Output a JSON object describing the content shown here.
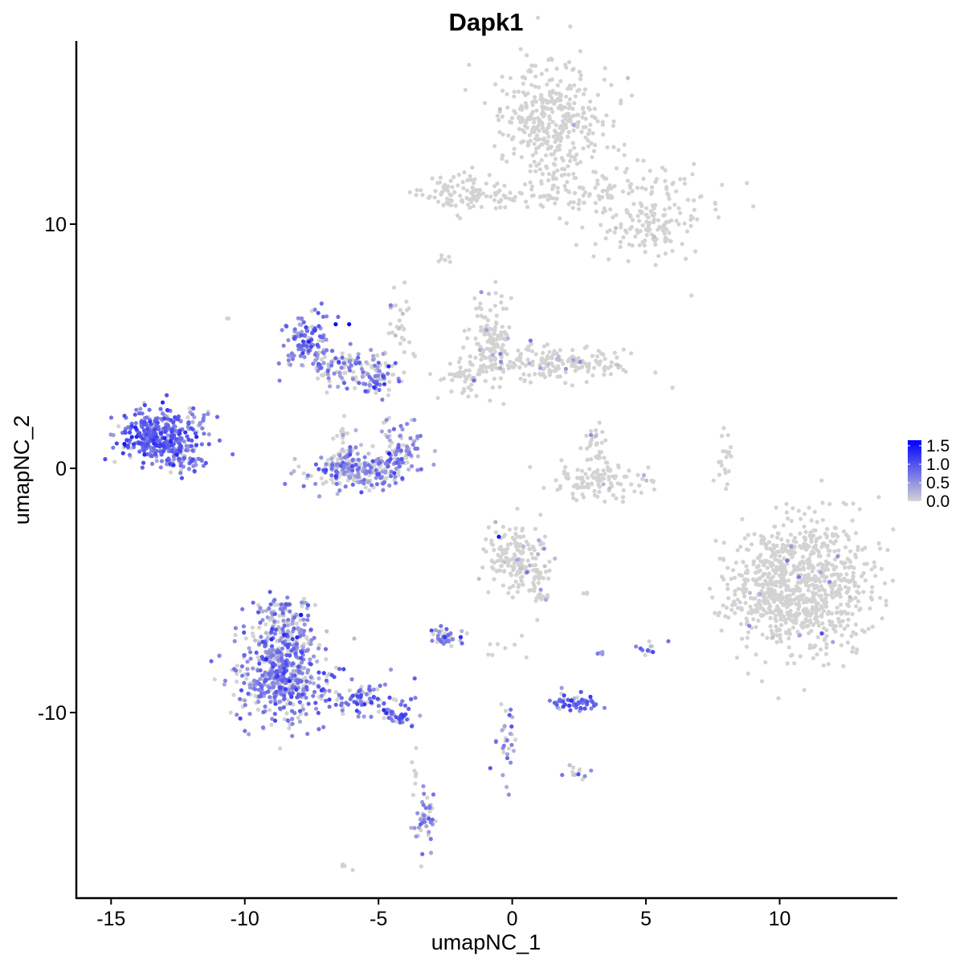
{
  "chart_data": {
    "type": "scatter",
    "title": "Dapk1",
    "xlabel": "umapNC_1",
    "ylabel": "umapNC_2",
    "xlim": [
      -16.3,
      14.4
    ],
    "ylim": [
      -17.6,
      17.5
    ],
    "x_ticks": [
      {
        "value": -15,
        "label": "-15"
      },
      {
        "value": -10,
        "label": "-10"
      },
      {
        "value": -5,
        "label": "-5"
      },
      {
        "value": 0,
        "label": "0"
      },
      {
        "value": 5,
        "label": "5"
      },
      {
        "value": 10,
        "label": "10"
      }
    ],
    "y_ticks": [
      {
        "value": 10,
        "label": "10"
      },
      {
        "value": 0,
        "label": "0"
      },
      {
        "value": -10,
        "label": "-10"
      }
    ],
    "grid": false,
    "legend": {
      "placement": "right",
      "type": "colorbar",
      "color_low": "#d3d3d3",
      "color_high": "#0000ff",
      "range": [
        0,
        1.65
      ],
      "ticks": [
        {
          "value": 1.5,
          "label": "1.5"
        },
        {
          "value": 1.0,
          "label": "1.0"
        },
        {
          "value": 0.5,
          "label": "0.5"
        },
        {
          "value": 0.0,
          "label": "0.0"
        }
      ]
    },
    "clusters": [
      {
        "cx": 1.6,
        "cy": 14.2,
        "sx": 1.1,
        "sy": 1.2,
        "n": 380,
        "expr": 0,
        "p": 0.005,
        "seed": 1
      },
      {
        "cx": 3.8,
        "cy": 11.2,
        "sx": 1.7,
        "sy": 0.5,
        "n": 130,
        "expr": 0,
        "p": 0.01,
        "seed": 2
      },
      {
        "cx": 5.2,
        "cy": 9.8,
        "sx": 1.0,
        "sy": 0.6,
        "n": 110,
        "expr": 0,
        "p": 0.01,
        "seed": 3
      },
      {
        "cx": -1.8,
        "cy": 11.3,
        "sx": 0.8,
        "sy": 0.4,
        "n": 90,
        "expr": 0,
        "p": 0.0,
        "seed": 4
      },
      {
        "cx": 0.2,
        "cy": 11.2,
        "sx": 1.1,
        "sy": 0.25,
        "n": 40,
        "expr": 0,
        "p": 0.0,
        "seed": 5
      },
      {
        "cx": -0.8,
        "cy": 5.0,
        "sx": 0.45,
        "sy": 0.9,
        "n": 140,
        "expr": 0.25,
        "p": 0.08,
        "seed": 6
      },
      {
        "cx": 1.6,
        "cy": 4.3,
        "sx": 1.2,
        "sy": 0.4,
        "n": 170,
        "expr": 0.3,
        "p": 0.07,
        "seed": 7
      },
      {
        "cx": -1.8,
        "cy": 3.7,
        "sx": 0.4,
        "sy": 0.45,
        "n": 40,
        "expr": 0.3,
        "p": 0.1,
        "seed": 8
      },
      {
        "cx": -7.7,
        "cy": 5.3,
        "sx": 0.45,
        "sy": 0.55,
        "n": 110,
        "expr": 0.7,
        "p": 0.85,
        "seed": 9
      },
      {
        "cx": -6.2,
        "cy": 4.2,
        "sx": 0.8,
        "sy": 0.35,
        "n": 110,
        "expr": 0.6,
        "p": 0.55,
        "seed": 10
      },
      {
        "cx": -5.1,
        "cy": 3.7,
        "sx": 0.4,
        "sy": 0.3,
        "n": 60,
        "expr": 0.65,
        "p": 0.65,
        "seed": 11
      },
      {
        "cx": -4.2,
        "cy": 5.8,
        "sx": 0.25,
        "sy": 0.9,
        "n": 30,
        "expr": 0.3,
        "p": 0.15,
        "seed": 12
      },
      {
        "cx": -5.6,
        "cy": -0.1,
        "sx": 1.0,
        "sy": 0.35,
        "n": 220,
        "expr": 0.6,
        "p": 0.55,
        "seed": 13
      },
      {
        "cx": -6.3,
        "cy": 0.7,
        "sx": 0.3,
        "sy": 0.5,
        "n": 50,
        "expr": 0.5,
        "p": 0.45,
        "seed": 14
      },
      {
        "cx": -4.2,
        "cy": 0.9,
        "sx": 0.35,
        "sy": 0.6,
        "n": 80,
        "expr": 0.6,
        "p": 0.65,
        "seed": 15
      },
      {
        "cx": -13.3,
        "cy": 1.3,
        "sx": 0.75,
        "sy": 0.55,
        "n": 340,
        "expr": 0.8,
        "p": 0.92,
        "seed": 16
      },
      {
        "cx": -12.3,
        "cy": 0.4,
        "sx": 0.4,
        "sy": 0.4,
        "n": 60,
        "expr": 0.65,
        "p": 0.8,
        "seed": 17
      },
      {
        "cx": -11.8,
        "cy": 2.2,
        "sx": 0.3,
        "sy": 0.35,
        "n": 20,
        "expr": 0.6,
        "p": 0.8,
        "seed": 18
      },
      {
        "cx": 3.2,
        "cy": -0.5,
        "sx": 0.9,
        "sy": 0.4,
        "n": 110,
        "expr": 0,
        "p": 0.02,
        "seed": 19
      },
      {
        "cx": 3.1,
        "cy": 0.8,
        "sx": 0.22,
        "sy": 0.5,
        "n": 30,
        "expr": 0.2,
        "p": 0.05,
        "seed": 20
      },
      {
        "cx": 8.0,
        "cy": 0.2,
        "sx": 0.15,
        "sy": 0.6,
        "n": 20,
        "expr": 0,
        "p": 0.0,
        "seed": 21
      },
      {
        "cx": 10.8,
        "cy": -4.8,
        "sx": 1.3,
        "sy": 1.4,
        "n": 820,
        "expr": 0.3,
        "p": 0.015,
        "seed": 22
      },
      {
        "cx": 9.3,
        "cy": -5.4,
        "sx": 0.6,
        "sy": 0.6,
        "n": 80,
        "expr": 0,
        "p": 0.0,
        "seed": 23
      },
      {
        "cx": 0.1,
        "cy": -3.6,
        "sx": 0.55,
        "sy": 0.7,
        "n": 170,
        "expr": 0.3,
        "p": 0.06,
        "seed": 24
      },
      {
        "cx": 1.0,
        "cy": -5.0,
        "sx": 0.25,
        "sy": 0.5,
        "n": 30,
        "expr": 0.35,
        "p": 0.1,
        "seed": 25
      },
      {
        "cx": -8.6,
        "cy": -8.3,
        "sx": 0.9,
        "sy": 1.1,
        "n": 580,
        "expr": 0.65,
        "p": 0.72,
        "seed": 26
      },
      {
        "cx": -8.6,
        "cy": -6.1,
        "sx": 0.45,
        "sy": 0.5,
        "n": 70,
        "expr": 0.6,
        "p": 0.7,
        "seed": 27
      },
      {
        "cx": -5.5,
        "cy": -9.4,
        "sx": 0.7,
        "sy": 0.35,
        "n": 80,
        "expr": 0.75,
        "p": 0.82,
        "seed": 28
      },
      {
        "cx": -4.3,
        "cy": -10.2,
        "sx": 0.35,
        "sy": 0.2,
        "n": 30,
        "expr": 0.8,
        "p": 0.85,
        "seed": 29
      },
      {
        "cx": -2.5,
        "cy": -6.9,
        "sx": 0.3,
        "sy": 0.2,
        "n": 40,
        "expr": 0.7,
        "p": 0.8,
        "seed": 30
      },
      {
        "cx": 2.3,
        "cy": -9.6,
        "sx": 0.4,
        "sy": 0.2,
        "n": 60,
        "expr": 0.75,
        "p": 0.88,
        "seed": 31
      },
      {
        "cx": -3.3,
        "cy": -14.6,
        "sx": 0.2,
        "sy": 0.6,
        "n": 45,
        "expr": 0.6,
        "p": 0.7,
        "seed": 32
      },
      {
        "cx": -0.2,
        "cy": -11.2,
        "sx": 0.2,
        "sy": 0.7,
        "n": 30,
        "expr": 0.6,
        "p": 0.6,
        "seed": 33
      },
      {
        "cx": 2.3,
        "cy": -12.5,
        "sx": 0.3,
        "sy": 0.2,
        "n": 12,
        "expr": 0.6,
        "p": 0.6,
        "seed": 34
      },
      {
        "cx": 5.0,
        "cy": -7.4,
        "sx": 0.2,
        "sy": 0.25,
        "n": 12,
        "expr": 0.6,
        "p": 0.75,
        "seed": 35
      },
      {
        "cx": -0.3,
        "cy": -7.3,
        "sx": 0.35,
        "sy": 0.2,
        "n": 8,
        "expr": 0,
        "p": 0.0,
        "seed": 36
      },
      {
        "cx": -3.7,
        "cy": -12.6,
        "sx": 0.1,
        "sy": 0.4,
        "n": 8,
        "expr": 0,
        "p": 0.0,
        "seed": 37
      },
      {
        "cx": -2.6,
        "cy": 8.6,
        "sx": 0.15,
        "sy": 0.1,
        "n": 6,
        "expr": 0.2,
        "p": 0.3,
        "seed": 38
      },
      {
        "cx": -6.2,
        "cy": -16.3,
        "sx": 0.1,
        "sy": 0.08,
        "n": 4,
        "expr": 0,
        "p": 0.0,
        "seed": 39
      },
      {
        "cx": 3.4,
        "cy": -7.6,
        "sx": 0.1,
        "sy": 0.1,
        "n": 4,
        "expr": 0.6,
        "p": 0.8,
        "seed": 40
      },
      {
        "cx": 6.8,
        "cy": 7.1,
        "sx": 0.05,
        "sy": 0.05,
        "n": 1,
        "expr": 0,
        "p": 0.0,
        "seed": 41
      },
      {
        "cx": -10.6,
        "cy": 6.1,
        "sx": 0.05,
        "sy": 0.05,
        "n": 2,
        "expr": 0,
        "p": 0.0,
        "seed": 42
      },
      {
        "cx": 2.8,
        "cy": -5.1,
        "sx": 0.1,
        "sy": 0.05,
        "n": 3,
        "expr": 0,
        "p": 0.0,
        "seed": 43
      }
    ],
    "high_points": [
      {
        "x": -6.6,
        "y": 5.9,
        "value": 1.6
      },
      {
        "x": -6.1,
        "y": 5.9,
        "value": 1.6
      },
      {
        "x": -14.5,
        "y": 1.0,
        "value": 1.5
      },
      {
        "x": -4.6,
        "y": 0.6,
        "value": 1.4
      },
      {
        "x": -7.9,
        "y": -6.0,
        "value": 1.5
      },
      {
        "x": -0.5,
        "y": -2.8,
        "value": 1.5
      },
      {
        "x": -9.0,
        "y": -7.0,
        "value": 1.3
      },
      {
        "x": -4.8,
        "y": -9.9,
        "value": 1.3
      }
    ]
  }
}
